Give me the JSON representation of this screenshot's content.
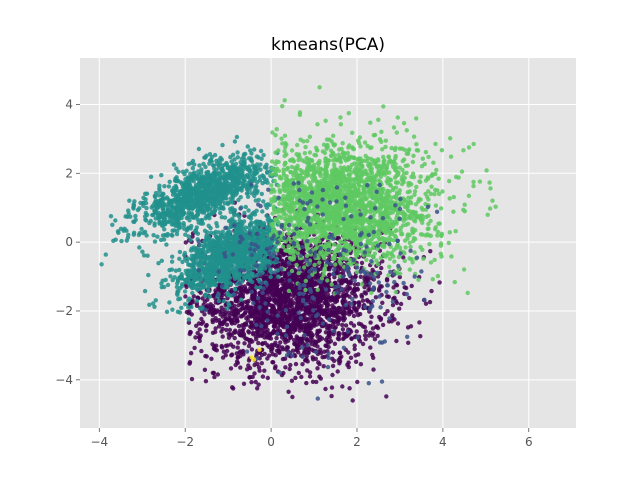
{
  "chart_data": {
    "type": "scatter",
    "title": "kmeans(PCA)",
    "xlabel": "",
    "ylabel": "",
    "xlim": [
      -4.45,
      7.1
    ],
    "ylim": [
      -5.4,
      5.35
    ],
    "xticks": [
      -4,
      -2,
      0,
      2,
      4,
      6
    ],
    "yticks": [
      -4,
      -2,
      0,
      2,
      4
    ],
    "grid": true,
    "legend": "none",
    "colors": {
      "plot_background": "#e5e5e5",
      "grid": "#ffffff",
      "tick_text": "#555555"
    },
    "series": [
      {
        "color": "#440154",
        "approx_points": 2600,
        "center": [
          0.4,
          -1.6
        ],
        "spread": [
          1.1,
          1.0
        ],
        "x_range": [
          -2.0,
          4.2
        ],
        "y_range": [
          -4.9,
          1.2
        ]
      },
      {
        "color": "#21918c",
        "approx_points": 2400,
        "components": [
          {
            "center": [
              -1.6,
              1.4
            ],
            "direction": [
              0.62,
              0.38
            ],
            "length_sd": 0.85,
            "width_sd": 0.35
          },
          {
            "center": [
              -0.9,
              -0.4
            ],
            "direction": [
              0.55,
              0.45
            ],
            "length_sd": 0.75,
            "width_sd": 0.4
          }
        ],
        "x_range": [
          -4.0,
          0.2
        ],
        "y_range": [
          -2.8,
          3.3
        ]
      },
      {
        "color": "#5ec962",
        "approx_points": 2200,
        "center": [
          1.6,
          1.1
        ],
        "spread": [
          1.1,
          0.9
        ],
        "x_range": [
          0.0,
          6.6
        ],
        "y_range": [
          -1.6,
          4.9
        ]
      },
      {
        "color": "#3b528b",
        "approx_points": 250,
        "center": [
          1.2,
          -0.8
        ],
        "spread": [
          1.3,
          1.3
        ],
        "x_range": [
          -2.0,
          4.3
        ],
        "y_range": [
          -4.8,
          2.0
        ]
      },
      {
        "color": "#fde725",
        "approx_points": 3,
        "center": [
          -0.3,
          -3.3
        ],
        "spread": [
          0.2,
          0.1
        ],
        "x_range": [
          -0.5,
          0.0
        ],
        "y_range": [
          -3.5,
          -3.1
        ]
      }
    ]
  }
}
